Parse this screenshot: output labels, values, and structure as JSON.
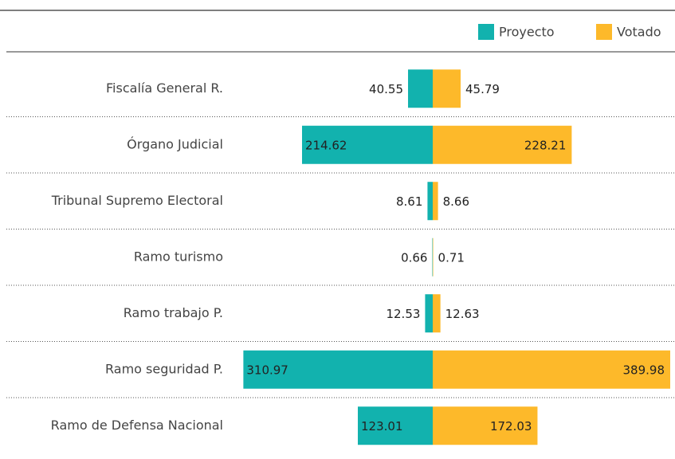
{
  "chart_data": {
    "type": "diverging-bar",
    "categories": [
      "Fiscalía General R.",
      "Órgano Judicial",
      "Tribunal Supremo Electoral",
      "Ramo turismo",
      "Ramo trabajo P.",
      "Ramo seguridad P.",
      "Ramo de Defensa Nacional"
    ],
    "series": [
      {
        "name": "Proyecto",
        "color": "#12b2ae",
        "values": [
          40.55,
          214.62,
          8.61,
          0.66,
          12.53,
          310.97,
          123.01
        ]
      },
      {
        "name": "Votado",
        "color": "#fdb92a",
        "values": [
          45.79,
          228.21,
          8.66,
          0.71,
          12.63,
          389.98,
          172.03
        ]
      }
    ],
    "legend": "top-right"
  }
}
